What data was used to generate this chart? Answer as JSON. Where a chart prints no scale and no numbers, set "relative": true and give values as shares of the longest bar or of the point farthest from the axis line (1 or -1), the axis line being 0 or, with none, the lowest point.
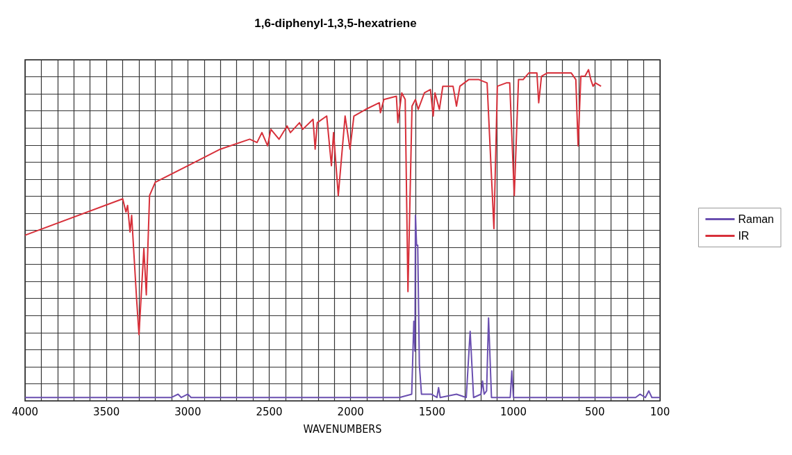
{
  "chart_data": {
    "type": "line",
    "title": "1,6-diphenyl-1,3,5-hexatriene",
    "xlabel": "WAVENUMBERS",
    "relative": true,
    "grid": true,
    "legend": "right",
    "marker": "none",
    "line_style": "solid",
    "xlim": [
      4000,
      100
    ],
    "xticks": [
      4000,
      {
        "value": 3900,
        "label": null
      },
      {
        "value": 3800,
        "label": null
      },
      {
        "value": 3700,
        "label": null
      },
      {
        "value": 3600,
        "label": null
      },
      3500,
      {
        "value": 3400,
        "label": null
      },
      {
        "value": 3300,
        "label": null
      },
      {
        "value": 3200,
        "label": null
      },
      {
        "value": 3100,
        "label": null
      },
      3000,
      {
        "value": 2900,
        "label": null
      },
      {
        "value": 2800,
        "label": null
      },
      {
        "value": 2700,
        "label": null
      },
      {
        "value": 2600,
        "label": null
      },
      2500,
      {
        "value": 2400,
        "label": null
      },
      {
        "value": 2300,
        "label": null
      },
      {
        "value": 2200,
        "label": null
      },
      {
        "value": 2100,
        "label": null
      },
      2000,
      {
        "value": 1900,
        "label": null
      },
      {
        "value": 1800,
        "label": null
      },
      {
        "value": 1700,
        "label": null
      },
      {
        "value": 1600,
        "label": null
      },
      1500,
      {
        "value": 1400,
        "label": null
      },
      {
        "value": 1300,
        "label": null
      },
      {
        "value": 1200,
        "label": null
      },
      {
        "value": 1100,
        "label": null
      },
      1000,
      {
        "value": 900,
        "label": null
      },
      {
        "value": 800,
        "label": null
      },
      {
        "value": 700,
        "label": null
      },
      {
        "value": 600,
        "label": null
      },
      500,
      {
        "value": 400,
        "label": null
      },
      {
        "value": 300,
        "label": null
      },
      {
        "value": 200,
        "label": null
      },
      100
    ],
    "series": [
      {
        "name": "Raman",
        "color": "#6a4fb0",
        "x": [
          4000,
          3100,
          3060,
          3040,
          3000,
          2980,
          1700,
          1625,
          1612,
          1605,
          1602,
          1595,
          1588,
          1578,
          1565,
          1505,
          1470,
          1460,
          1450,
          1350,
          1290,
          1266,
          1245,
          1200,
          1190,
          1180,
          1165,
          1153,
          1135,
          1020,
          1010,
          1000,
          250,
          223,
          190,
          169,
          150,
          100
        ],
        "values": [
          0.01,
          0.01,
          0.02,
          0.01,
          0.02,
          0.01,
          0.01,
          0.02,
          0.24,
          0.15,
          0.56,
          0.47,
          0.47,
          0.11,
          0.02,
          0.02,
          0.01,
          0.04,
          0.01,
          0.02,
          0.01,
          0.21,
          0.01,
          0.02,
          0.06,
          0.02,
          0.03,
          0.25,
          0.01,
          0.01,
          0.09,
          0.01,
          0.01,
          0.02,
          0.01,
          0.03,
          0.01,
          0.01
        ]
      },
      {
        "name": "IR",
        "color": "#d7303a",
        "x": [
          4000,
          3400,
          3380,
          3370,
          3355,
          3345,
          3315,
          3300,
          3270,
          3255,
          3235,
          3200,
          3000,
          2800,
          2620,
          2575,
          2545,
          2510,
          2490,
          2440,
          2390,
          2370,
          2314,
          2294,
          2231,
          2218,
          2205,
          2147,
          2118,
          2105,
          2076,
          2034,
          2004,
          1980,
          1908,
          1824,
          1817,
          1796,
          1719,
          1710,
          1686,
          1665,
          1648,
          1623,
          1602,
          1585,
          1547,
          1510,
          1493,
          1482,
          1455,
          1434,
          1371,
          1350,
          1329,
          1275,
          1212,
          1162,
          1120,
          1099,
          1044,
          1023,
          995,
          969,
          941,
          906,
          856,
          845,
          828,
          793,
          744,
          723,
          694,
          645,
          617,
          603,
          586,
          561,
          539,
          525,
          511,
          497,
          462
        ],
        "values": [
          0.5,
          0.61,
          0.57,
          0.59,
          0.51,
          0.56,
          0.31,
          0.2,
          0.46,
          0.32,
          0.62,
          0.66,
          0.71,
          0.76,
          0.79,
          0.78,
          0.81,
          0.77,
          0.82,
          0.79,
          0.83,
          0.81,
          0.84,
          0.82,
          0.85,
          0.76,
          0.84,
          0.86,
          0.71,
          0.81,
          0.62,
          0.86,
          0.76,
          0.86,
          0.88,
          0.9,
          0.87,
          0.91,
          0.92,
          0.84,
          0.93,
          0.91,
          0.33,
          0.89,
          0.91,
          0.88,
          0.93,
          0.94,
          0.86,
          0.93,
          0.88,
          0.95,
          0.95,
          0.89,
          0.95,
          0.97,
          0.97,
          0.96,
          0.52,
          0.95,
          0.96,
          0.96,
          0.62,
          0.97,
          0.97,
          0.99,
          0.99,
          0.9,
          0.98,
          0.99,
          0.99,
          0.99,
          0.99,
          0.99,
          0.97,
          0.77,
          0.98,
          0.98,
          1.0,
          0.97,
          0.95,
          0.96,
          0.95
        ]
      }
    ]
  }
}
